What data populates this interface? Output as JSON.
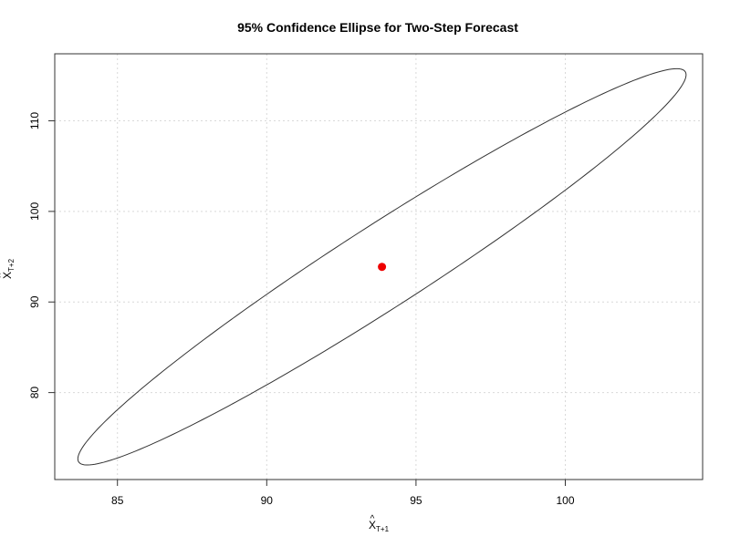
{
  "chart_data": {
    "type": "scatter",
    "title": "95% Confidence Ellipse for Two-Step Forecast",
    "xlabel": {
      "base": "X",
      "accent": "^",
      "subscript": "T+1"
    },
    "ylabel": {
      "base": "X",
      "accent": "^",
      "subscript": "T+2"
    },
    "xlim": [
      82.9,
      104.6
    ],
    "ylim": [
      70.4,
      117.4
    ],
    "x_ticks": [
      85,
      90,
      95,
      100
    ],
    "x_tick_labels": [
      "85",
      "90",
      "95",
      "100"
    ],
    "y_ticks": [
      80,
      90,
      100,
      110
    ],
    "y_tick_labels": [
      "80",
      "90",
      "100",
      "110"
    ],
    "grid": true,
    "ellipse": {
      "center": [
        93.86,
        93.88
      ],
      "semi_axis_major": 24.02,
      "semi_axis_minor": 2.29,
      "major_axis_direction": [
        0.4151,
        0.9098
      ],
      "confidence_level": 0.95
    },
    "points": [
      {
        "x": 93.86,
        "y": 93.88
      }
    ],
    "colors": {
      "ellipse": "#333333",
      "point": "#ee0000",
      "grid": "#d9d9d9",
      "box": "#333333"
    }
  }
}
